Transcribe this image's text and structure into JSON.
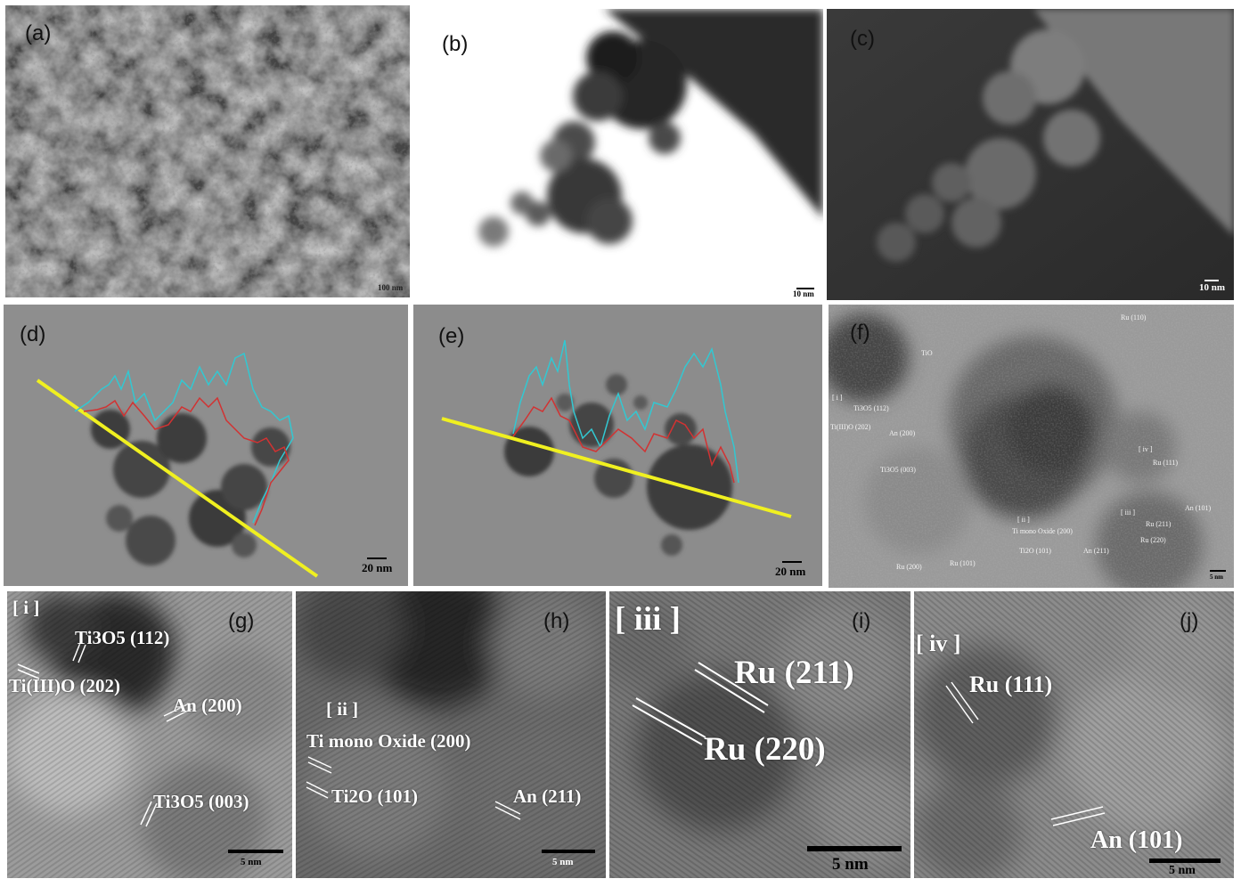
{
  "panels": {
    "a": {
      "label": "(a)",
      "scale": "100 nm"
    },
    "b": {
      "label": "(b)",
      "scale": "10 nm"
    },
    "c": {
      "label": "(c)",
      "scale": "10 nm"
    },
    "d": {
      "label": "(d)",
      "scale": "20 nm"
    },
    "e": {
      "label": "(e)",
      "scale": "20 nm"
    },
    "f": {
      "label": "(f)",
      "scale": "5 nm",
      "annotations": [
        "Ru (110)",
        "TiO",
        "[ i ]",
        "Ti3O5 (112)",
        "Ti(III)O (202)",
        "An (200)",
        "Ti3O5 (003)",
        "[ iv ]",
        "Ru (111)",
        "[ ii ]",
        "Ti mono Oxide (200)",
        "[ iii ]",
        "Ru (211)",
        "Ru (220)",
        "An (101)",
        "Ti2O (101)",
        "An (211)",
        "Ru (200)",
        "Ru (101)"
      ]
    },
    "g": {
      "label": "(g)",
      "scale": "5 nm",
      "region": "[ i ]",
      "annotations": [
        "Ti3O5 (112)",
        "Ti(III)O (202)",
        "An (200)",
        "Ti3O5 (003)"
      ]
    },
    "h": {
      "label": "(h)",
      "scale": "5 nm",
      "region": "[ ii ]",
      "annotations": [
        "Ti mono Oxide (200)",
        "Ti2O (101)",
        "An (211)"
      ]
    },
    "i": {
      "label": "(i)",
      "scale": "5 nm",
      "region": "[ iii ]",
      "annotations": [
        "Ru (211)",
        "Ru (220)"
      ]
    },
    "j": {
      "label": "(j)",
      "scale": "5 nm",
      "region": "[ iv ]",
      "annotations": [
        "Ru (111)",
        "An (101)"
      ]
    }
  },
  "colors": {
    "linescan": "#f0f020",
    "profile_cyan": "#32c8d2",
    "profile_red": "#d23232",
    "annotation": "#ffffff"
  }
}
